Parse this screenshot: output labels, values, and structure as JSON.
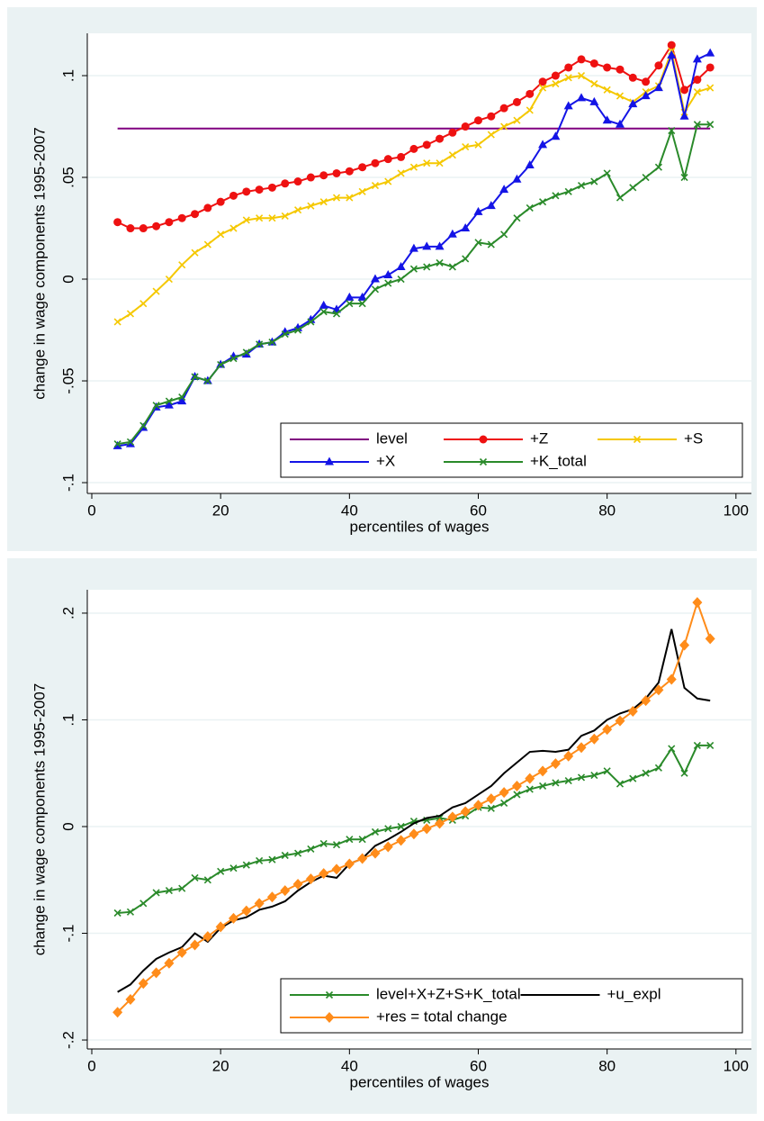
{
  "chart_data": [
    {
      "type": "line",
      "xlabel": "percentiles of wages",
      "ylabel": "change in wage components 1995-2007",
      "x": [
        4,
        6,
        8,
        10,
        12,
        14,
        16,
        18,
        20,
        22,
        24,
        26,
        28,
        30,
        32,
        34,
        36,
        38,
        40,
        42,
        44,
        46,
        48,
        50,
        52,
        54,
        56,
        58,
        60,
        62,
        64,
        66,
        68,
        70,
        72,
        74,
        76,
        78,
        80,
        82,
        84,
        86,
        88,
        90,
        92,
        94,
        96
      ],
      "xlim": [
        -0.7,
        102.4
      ],
      "xticks": [
        0,
        20,
        40,
        60,
        80,
        100
      ],
      "ylim": [
        -0.1053,
        0.1208
      ],
      "yticks": [
        {
          "value": -0.1,
          "label": "-.1"
        },
        {
          "value": -0.05,
          "label": "-.05"
        },
        0,
        {
          "value": 0.05,
          "label": ".05"
        },
        {
          "value": 0.1,
          "label": ".1"
        }
      ],
      "grid": true,
      "legend_position": "lower right",
      "legend_columns": 3,
      "series": [
        {
          "name": "level",
          "color": "#800080",
          "marker": "none",
          "values": [
            0.074,
            0.074,
            0.074,
            0.074,
            0.074,
            0.074,
            0.074,
            0.074,
            0.074,
            0.074,
            0.074,
            0.074,
            0.074,
            0.074,
            0.074,
            0.074,
            0.074,
            0.074,
            0.074,
            0.074,
            0.074,
            0.074,
            0.074,
            0.074,
            0.074,
            0.074,
            0.074,
            0.074,
            0.074,
            0.074,
            0.074,
            0.074,
            0.074,
            0.074,
            0.074,
            0.074,
            0.074,
            0.074,
            0.074,
            0.074,
            0.074,
            0.074,
            0.074,
            0.074,
            0.074,
            0.074,
            0.074
          ]
        },
        {
          "name": "+Z",
          "color": "#ee1111",
          "marker": "circle",
          "values": [
            0.028,
            0.025,
            0.025,
            0.026,
            0.028,
            0.03,
            0.032,
            0.035,
            0.038,
            0.041,
            0.043,
            0.044,
            0.045,
            0.047,
            0.048,
            0.05,
            0.051,
            0.052,
            0.053,
            0.055,
            0.057,
            0.059,
            0.06,
            0.064,
            0.066,
            0.069,
            0.072,
            0.075,
            0.078,
            0.08,
            0.084,
            0.087,
            0.091,
            0.097,
            0.1,
            0.104,
            0.108,
            0.106,
            0.104,
            0.103,
            0.099,
            0.097,
            0.105,
            0.115,
            0.093,
            0.098,
            0.104
          ]
        },
        {
          "name": "+S",
          "color": "#f5c800",
          "marker": "x",
          "values": [
            -0.021,
            -0.017,
            -0.012,
            -0.006,
            0.0,
            0.007,
            0.013,
            0.017,
            0.022,
            0.025,
            0.029,
            0.03,
            0.03,
            0.031,
            0.034,
            0.036,
            0.038,
            0.04,
            0.04,
            0.043,
            0.046,
            0.048,
            0.052,
            0.055,
            0.057,
            0.057,
            0.061,
            0.065,
            0.066,
            0.071,
            0.075,
            0.078,
            0.083,
            0.094,
            0.096,
            0.099,
            0.1,
            0.096,
            0.093,
            0.09,
            0.087,
            0.092,
            0.095,
            0.112,
            0.082,
            0.092,
            0.094
          ]
        },
        {
          "name": "+X",
          "color": "#1414e6",
          "marker": "triangle",
          "values": [
            -0.082,
            -0.081,
            -0.073,
            -0.063,
            -0.062,
            -0.06,
            -0.048,
            -0.05,
            -0.042,
            -0.038,
            -0.037,
            -0.032,
            -0.031,
            -0.026,
            -0.024,
            -0.02,
            -0.013,
            -0.015,
            -0.009,
            -0.009,
            0.0,
            0.002,
            0.006,
            0.015,
            0.016,
            0.016,
            0.022,
            0.025,
            0.033,
            0.036,
            0.044,
            0.049,
            0.056,
            0.066,
            0.07,
            0.085,
            0.089,
            0.087,
            0.078,
            0.076,
            0.086,
            0.09,
            0.094,
            0.11,
            0.08,
            0.108,
            0.111
          ]
        },
        {
          "name": "+K_total",
          "color": "#2a8a2a",
          "marker": "x",
          "values": [
            -0.081,
            -0.08,
            -0.072,
            -0.062,
            -0.06,
            -0.058,
            -0.048,
            -0.05,
            -0.042,
            -0.039,
            -0.036,
            -0.032,
            -0.031,
            -0.027,
            -0.025,
            -0.021,
            -0.016,
            -0.017,
            -0.012,
            -0.012,
            -0.005,
            -0.002,
            0.0,
            0.005,
            0.006,
            0.008,
            0.006,
            0.01,
            0.018,
            0.017,
            0.022,
            0.03,
            0.035,
            0.038,
            0.041,
            0.043,
            0.046,
            0.048,
            0.052,
            0.04,
            0.045,
            0.05,
            0.055,
            0.073,
            0.05,
            0.076,
            0.076
          ]
        }
      ]
    },
    {
      "type": "line",
      "xlabel": "percentiles of wages",
      "ylabel": "change in wage components 1995-2007",
      "x": [
        4,
        6,
        8,
        10,
        12,
        14,
        16,
        18,
        20,
        22,
        24,
        26,
        28,
        30,
        32,
        34,
        36,
        38,
        40,
        42,
        44,
        46,
        48,
        50,
        52,
        54,
        56,
        58,
        60,
        62,
        64,
        66,
        68,
        70,
        72,
        74,
        76,
        78,
        80,
        82,
        84,
        86,
        88,
        90,
        92,
        94,
        96
      ],
      "xlim": [
        -0.7,
        102.4
      ],
      "xticks": [
        0,
        20,
        40,
        60,
        80,
        100
      ],
      "ylim": [
        -0.2084,
        0.2219
      ],
      "yticks": [
        {
          "value": -0.2,
          "label": "-.2"
        },
        {
          "value": -0.1,
          "label": "-.1"
        },
        0,
        {
          "value": 0.1,
          "label": ".1"
        },
        {
          "value": 0.2,
          "label": ".2"
        }
      ],
      "grid": true,
      "legend_position": "lower right",
      "legend_columns": 2,
      "series": [
        {
          "name": "level+X+Z+S+K_total",
          "color": "#2a8a2a",
          "marker": "x",
          "values": [
            -0.081,
            -0.08,
            -0.072,
            -0.062,
            -0.06,
            -0.058,
            -0.048,
            -0.05,
            -0.042,
            -0.039,
            -0.036,
            -0.032,
            -0.031,
            -0.027,
            -0.025,
            -0.021,
            -0.016,
            -0.017,
            -0.012,
            -0.012,
            -0.005,
            -0.002,
            0.0,
            0.005,
            0.006,
            0.008,
            0.006,
            0.01,
            0.018,
            0.017,
            0.022,
            0.03,
            0.035,
            0.038,
            0.041,
            0.043,
            0.046,
            0.048,
            0.052,
            0.04,
            0.045,
            0.05,
            0.055,
            0.073,
            0.05,
            0.076,
            0.076
          ]
        },
        {
          "name": "+u_expl",
          "color": "#000000",
          "marker": "none",
          "values": [
            -0.155,
            -0.148,
            -0.135,
            -0.124,
            -0.118,
            -0.113,
            -0.1,
            -0.108,
            -0.095,
            -0.088,
            -0.085,
            -0.078,
            -0.075,
            -0.07,
            -0.06,
            -0.052,
            -0.046,
            -0.048,
            -0.035,
            -0.03,
            -0.018,
            -0.012,
            -0.005,
            0.003,
            0.008,
            0.01,
            0.018,
            0.022,
            0.03,
            0.038,
            0.05,
            0.06,
            0.07,
            0.071,
            0.07,
            0.072,
            0.085,
            0.09,
            0.1,
            0.106,
            0.11,
            0.12,
            0.135,
            0.185,
            0.13,
            0.12,
            0.118
          ]
        },
        {
          "name": "+res = total change",
          "color": "#ff8c1a",
          "marker": "diamond",
          "values": [
            -0.174,
            -0.162,
            -0.147,
            -0.137,
            -0.128,
            -0.118,
            -0.111,
            -0.103,
            -0.094,
            -0.086,
            -0.079,
            -0.072,
            -0.066,
            -0.06,
            -0.054,
            -0.049,
            -0.044,
            -0.04,
            -0.035,
            -0.03,
            -0.025,
            -0.019,
            -0.013,
            -0.007,
            -0.002,
            0.003,
            0.009,
            0.014,
            0.02,
            0.026,
            0.032,
            0.038,
            0.045,
            0.052,
            0.059,
            0.066,
            0.074,
            0.082,
            0.091,
            0.099,
            0.108,
            0.118,
            0.128,
            0.138,
            0.17,
            0.21,
            0.176
          ]
        }
      ]
    }
  ]
}
